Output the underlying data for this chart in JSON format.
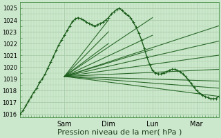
{
  "bg_color": "#cce8cc",
  "grid_color": "#aaccaa",
  "line_color": "#1a5c1a",
  "xlabel": "Pression niveau de la mer( hPa )",
  "xlabel_fontsize": 8,
  "ytick_values": [
    1016,
    1017,
    1018,
    1019,
    1020,
    1021,
    1022,
    1023,
    1024,
    1025
  ],
  "ylim": [
    1015.7,
    1025.5
  ],
  "xlim": [
    0,
    216
  ],
  "xtick_label_positions": [
    48,
    96,
    144,
    192
  ],
  "xtick_labels": [
    "Sam",
    "Dim",
    "Lun",
    "Mar"
  ],
  "convergence_x": 48,
  "convergence_y": 1019.2,
  "main_series": {
    "x": [
      0,
      3,
      6,
      9,
      12,
      15,
      18,
      21,
      24,
      27,
      30,
      33,
      36,
      39,
      42,
      45,
      48,
      51,
      54,
      57,
      60,
      63,
      66,
      69,
      72,
      75,
      78,
      81,
      84,
      87,
      90,
      93,
      96,
      99,
      102,
      105,
      108,
      111,
      114,
      117,
      120,
      123,
      126,
      129,
      132,
      135,
      138,
      141,
      144,
      147,
      150,
      153,
      156,
      159,
      162,
      165,
      168,
      171,
      174,
      177,
      180,
      183,
      186,
      189,
      192,
      195,
      198,
      201,
      204,
      207,
      210,
      213,
      216
    ],
    "y": [
      1016.0,
      1016.3,
      1016.7,
      1017.1,
      1017.5,
      1017.9,
      1018.2,
      1018.7,
      1019.0,
      1019.4,
      1019.9,
      1020.4,
      1020.9,
      1021.4,
      1021.9,
      1022.3,
      1022.7,
      1023.1,
      1023.5,
      1023.9,
      1024.1,
      1024.2,
      1024.1,
      1024.0,
      1023.8,
      1023.7,
      1023.6,
      1023.5,
      1023.6,
      1023.7,
      1023.8,
      1024.0,
      1024.2,
      1024.5,
      1024.7,
      1024.9,
      1025.0,
      1024.8,
      1024.6,
      1024.4,
      1024.2,
      1023.8,
      1023.4,
      1022.9,
      1022.3,
      1021.6,
      1020.8,
      1020.2,
      1019.7,
      1019.5,
      1019.4,
      1019.4,
      1019.5,
      1019.6,
      1019.7,
      1019.8,
      1019.8,
      1019.7,
      1019.6,
      1019.4,
      1019.2,
      1018.9,
      1018.6,
      1018.3,
      1018.0,
      1017.8,
      1017.6,
      1017.5,
      1017.4,
      1017.3,
      1017.3,
      1017.3,
      1017.5
    ]
  },
  "fan_lines": [
    {
      "x2": 216,
      "y2": 1023.5
    },
    {
      "x2": 216,
      "y2": 1022.2
    },
    {
      "x2": 216,
      "y2": 1021.0
    },
    {
      "x2": 216,
      "y2": 1019.8
    },
    {
      "x2": 216,
      "y2": 1018.8
    },
    {
      "x2": 216,
      "y2": 1018.2
    },
    {
      "x2": 216,
      "y2": 1017.5
    },
    {
      "x2": 144,
      "y2": 1024.2
    },
    {
      "x2": 144,
      "y2": 1022.7
    },
    {
      "x2": 144,
      "y2": 1021.5
    },
    {
      "x2": 96,
      "y2": 1024.0
    },
    {
      "x2": 96,
      "y2": 1023.0
    },
    {
      "x2": 96,
      "y2": 1022.0
    }
  ]
}
